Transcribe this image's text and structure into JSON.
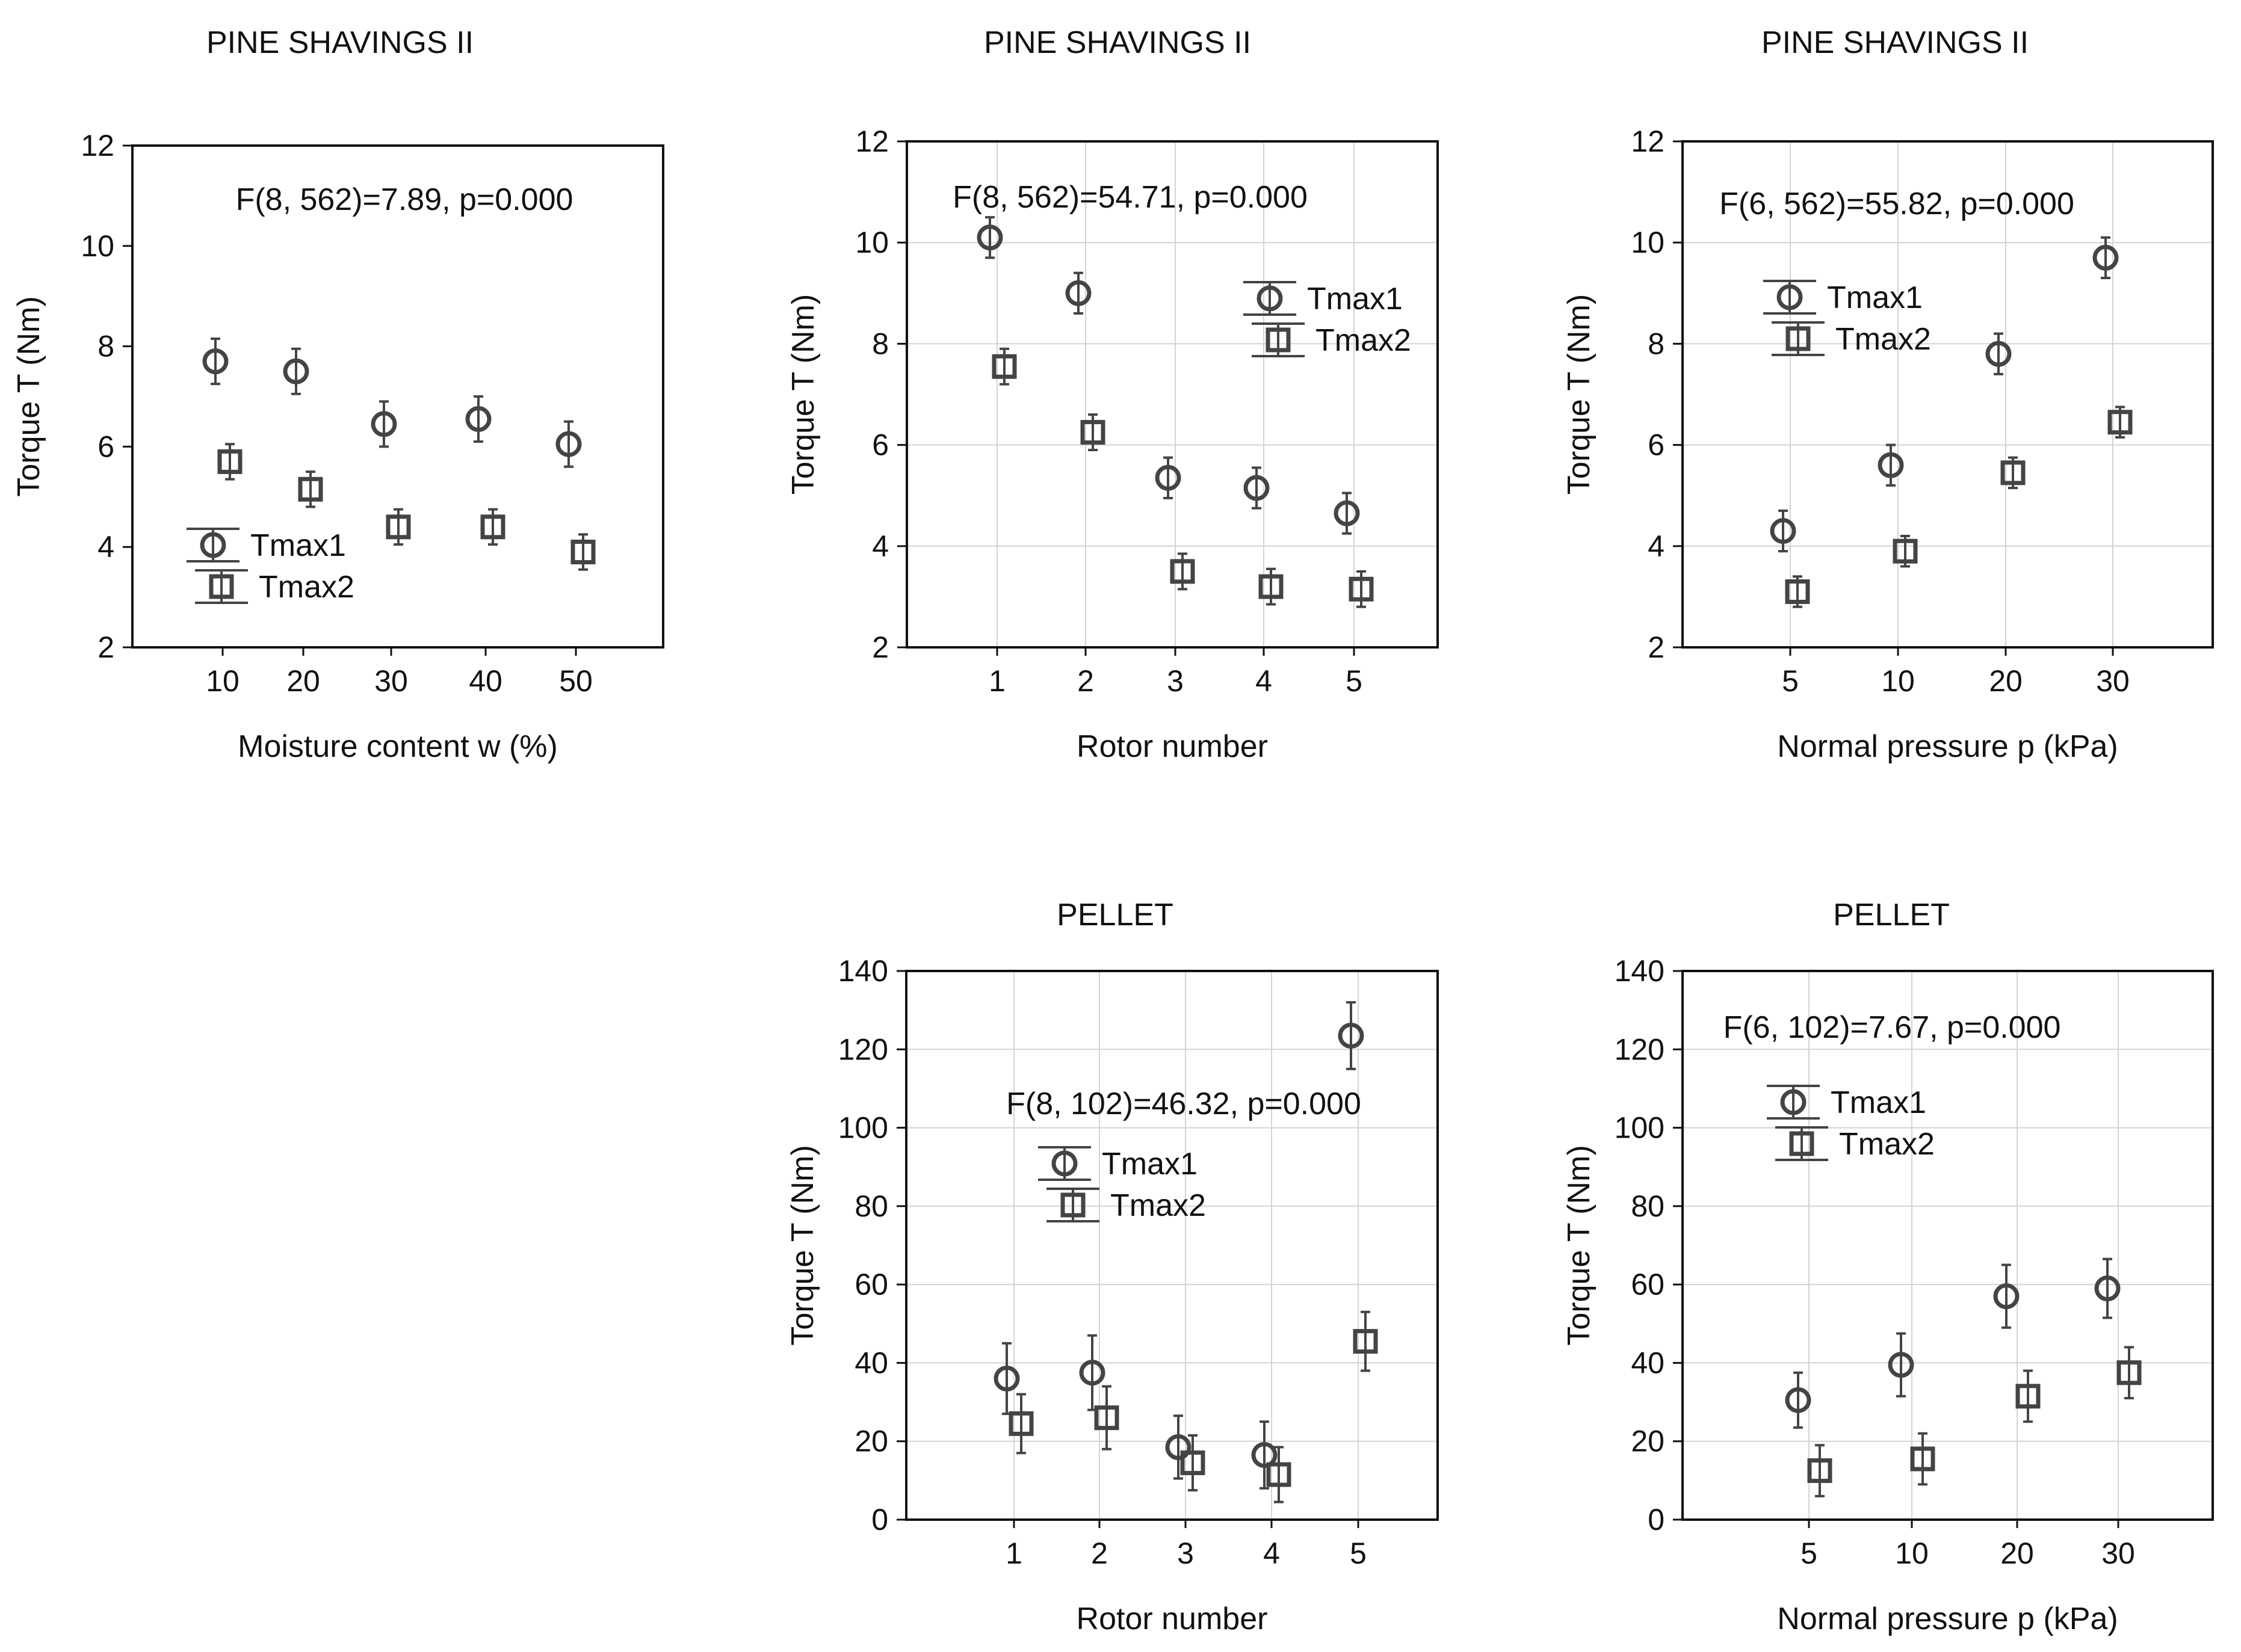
{
  "figure": {
    "background": "#ffffff",
    "ink": "#111111",
    "marker_color": "#444444",
    "grid_color": "#d4d4d4"
  },
  "chart_data": [
    {
      "id": "ps-moisture",
      "type": "scatter",
      "title": "PINE SHAVINGS II",
      "xlabel": "Moisture content w (%)",
      "ylabel": "Torque T (Nm)",
      "categories": [
        "10",
        "20",
        "30",
        "40",
        "50"
      ],
      "ylim": [
        2,
        12
      ],
      "yticks": [
        2,
        4,
        6,
        8,
        10,
        12
      ],
      "grid": false,
      "annotation": "F(8, 562)=7.89, p=0.000",
      "legend_position": "bottom-left",
      "series": [
        {
          "name": "Tmax1",
          "marker": "circle",
          "values": [
            7.7,
            7.5,
            6.45,
            6.55,
            6.05
          ],
          "err": [
            0.45,
            0.45,
            0.45,
            0.45,
            0.45
          ]
        },
        {
          "name": "Tmax2",
          "marker": "square",
          "values": [
            5.7,
            5.15,
            4.4,
            4.4,
            3.9
          ],
          "err": [
            0.35,
            0.35,
            0.35,
            0.35,
            0.35
          ]
        }
      ]
    },
    {
      "id": "ps-rotor",
      "type": "scatter",
      "title": "PINE SHAVINGS II",
      "xlabel": "Rotor number",
      "ylabel": "Torque T (Nm)",
      "categories": [
        "1",
        "2",
        "3",
        "4",
        "5"
      ],
      "ylim": [
        2,
        12
      ],
      "yticks": [
        2,
        4,
        6,
        8,
        10,
        12
      ],
      "grid": true,
      "annotation": "F(8, 562)=54.71, p=0.000",
      "legend_position": "top-right",
      "series": [
        {
          "name": "Tmax1",
          "marker": "circle",
          "values": [
            10.1,
            9.0,
            5.35,
            5.15,
            4.65
          ],
          "err": [
            0.4,
            0.4,
            0.4,
            0.4,
            0.4
          ]
        },
        {
          "name": "Tmax2",
          "marker": "square",
          "values": [
            7.55,
            6.25,
            3.5,
            3.2,
            3.15
          ],
          "err": [
            0.35,
            0.35,
            0.35,
            0.35,
            0.35
          ]
        }
      ]
    },
    {
      "id": "ps-pressure",
      "type": "scatter",
      "title": "PINE SHAVINGS II",
      "xlabel": "Normal pressure p (kPa)",
      "ylabel": "Torque T (Nm)",
      "categories": [
        "5",
        "10",
        "20",
        "30"
      ],
      "ylim": [
        2,
        12
      ],
      "yticks": [
        2,
        4,
        6,
        8,
        10,
        12
      ],
      "grid": true,
      "annotation": "F(6, 562)=55.82, p=0.000",
      "legend_position": "top-left",
      "series": [
        {
          "name": "Tmax1",
          "marker": "circle",
          "values": [
            4.3,
            5.6,
            7.8,
            9.7
          ],
          "err": [
            0.4,
            0.4,
            0.4,
            0.4
          ]
        },
        {
          "name": "Tmax2",
          "marker": "square",
          "values": [
            3.1,
            3.9,
            5.45,
            6.45
          ],
          "err": [
            0.3,
            0.3,
            0.3,
            0.3
          ]
        }
      ]
    },
    {
      "id": "pellet-rotor",
      "type": "scatter",
      "title": "PELLET",
      "xlabel": "Rotor number",
      "ylabel": "Torque T (Nm)",
      "categories": [
        "1",
        "2",
        "3",
        "4",
        "5"
      ],
      "ylim": [
        0,
        140
      ],
      "yticks": [
        0,
        20,
        40,
        60,
        80,
        100,
        120,
        140
      ],
      "grid": true,
      "annotation": "F(8, 102)=46.32, p=0.000",
      "legend_position": "upper-left",
      "series": [
        {
          "name": "Tmax1",
          "marker": "circle",
          "values": [
            36,
            37.5,
            18.5,
            16.5,
            123.5
          ],
          "err": [
            9,
            9.5,
            8,
            8.5,
            8.5
          ]
        },
        {
          "name": "Tmax2",
          "marker": "square",
          "values": [
            24.5,
            26,
            14.5,
            11.5,
            45.5
          ],
          "err": [
            7.5,
            8,
            7,
            7,
            7.5
          ]
        }
      ]
    },
    {
      "id": "pellet-pressure",
      "type": "scatter",
      "title": "PELLET",
      "xlabel": "Normal pressure p (kPa)",
      "ylabel": "Torque T (Nm)",
      "categories": [
        "5",
        "10",
        "20",
        "30"
      ],
      "ylim": [
        0,
        140
      ],
      "yticks": [
        0,
        20,
        40,
        60,
        80,
        100,
        120,
        140
      ],
      "grid": true,
      "annotation": "F(6, 102)=7.67, p=0.000",
      "legend_position": "top-left",
      "series": [
        {
          "name": "Tmax1",
          "marker": "circle",
          "values": [
            30.5,
            39.5,
            57,
            59
          ],
          "err": [
            7,
            8,
            8,
            7.5
          ]
        },
        {
          "name": "Tmax2",
          "marker": "square",
          "values": [
            12.5,
            15.5,
            31.5,
            37.5
          ],
          "err": [
            6.5,
            6.5,
            6.5,
            6.5
          ]
        }
      ]
    }
  ]
}
